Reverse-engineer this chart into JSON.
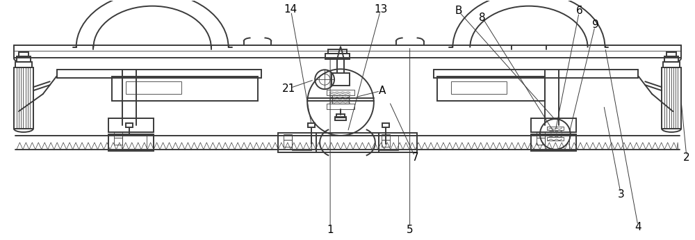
{
  "fig_width": 10.0,
  "fig_height": 3.45,
  "dpi": 100,
  "bg_color": "#ffffff",
  "lc": "#3a3a3a",
  "lw": 0.9,
  "lw2": 1.4,
  "lw3": 0.6,
  "xlim": [
    0,
    1000
  ],
  "ylim": [
    0,
    345
  ]
}
